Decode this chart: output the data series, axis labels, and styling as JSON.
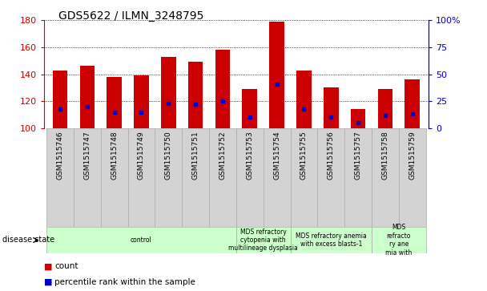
{
  "title": "GDS5622 / ILMN_3248795",
  "samples": [
    "GSM1515746",
    "GSM1515747",
    "GSM1515748",
    "GSM1515749",
    "GSM1515750",
    "GSM1515751",
    "GSM1515752",
    "GSM1515753",
    "GSM1515754",
    "GSM1515755",
    "GSM1515756",
    "GSM1515757",
    "GSM1515758",
    "GSM1515759"
  ],
  "counts": [
    143,
    146,
    138,
    139,
    153,
    149,
    158,
    129,
    179,
    143,
    130,
    114,
    129,
    136
  ],
  "percentile_ranks": [
    18,
    20,
    15,
    15,
    23,
    22,
    25,
    10,
    41,
    18,
    10,
    5,
    12,
    13
  ],
  "ymin": 100,
  "ymax": 180,
  "yticks_left": [
    100,
    120,
    140,
    160,
    180
  ],
  "yticks_right": [
    0,
    25,
    50,
    75,
    100
  ],
  "bar_color": "#cc0000",
  "dot_color": "#0000cc",
  "bar_width": 0.55,
  "disease_groups": [
    {
      "label": "control",
      "start": 0,
      "end": 7,
      "color": "#ccffcc"
    },
    {
      "label": "MDS refractory\ncytopenia with\nmultilineage dysplasia",
      "start": 7,
      "end": 9,
      "color": "#ccffcc"
    },
    {
      "label": "MDS refractory anemia\nwith excess blasts-1",
      "start": 9,
      "end": 12,
      "color": "#ccffcc"
    },
    {
      "label": "MDS\nrefracto\nry ane\nmia with",
      "start": 12,
      "end": 14,
      "color": "#ccffcc"
    }
  ],
  "bg_color": "#ffffff",
  "grid_color": "#000000",
  "tick_label_color_left": "#cc0000",
  "tick_label_color_right": "#0000cc",
  "axis_color_left": "#cc0000",
  "axis_color_right": "#0000cc",
  "sample_box_color": "#d3d3d3",
  "sample_box_edge": "#aaaaaa",
  "legend_count_color": "#cc0000",
  "legend_pct_color": "#0000cc"
}
